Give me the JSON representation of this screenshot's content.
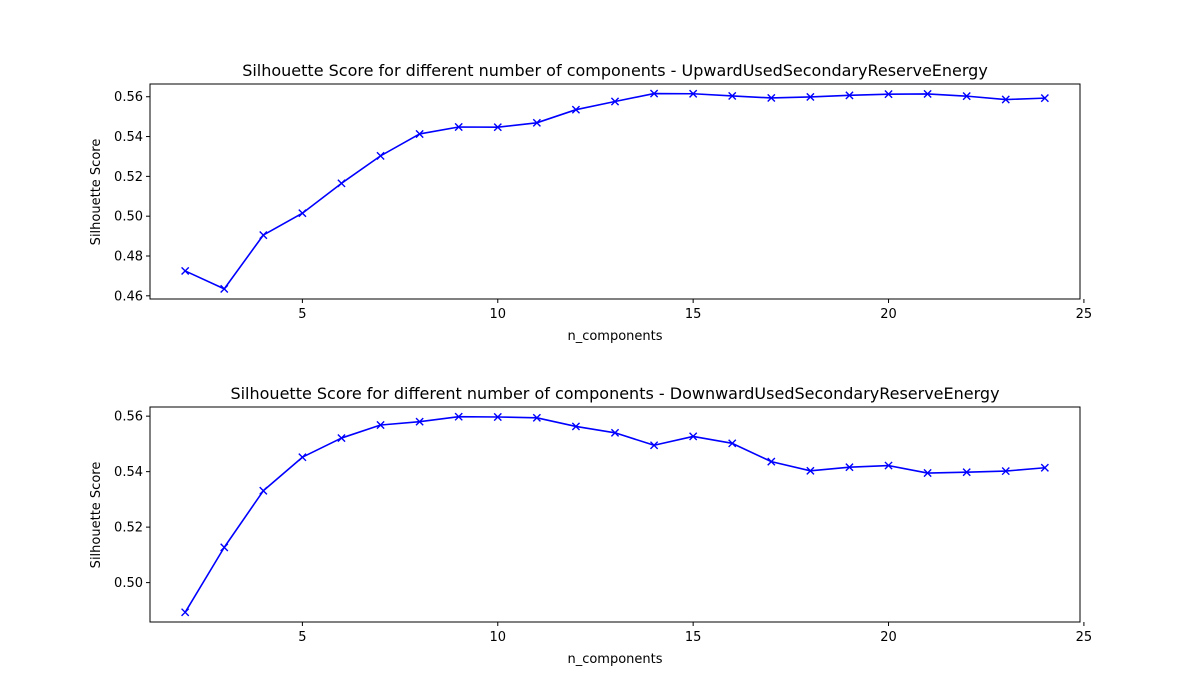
{
  "chart_data": [
    {
      "type": "line",
      "title": "Silhouette Score for different number of components - UpwardUsedSecondaryReserveEnergy",
      "xlabel": "n_components",
      "ylabel": "Silhouette Score",
      "xlim": [
        1.1,
        24.9
      ],
      "ylim": [
        0.4584,
        0.5664
      ],
      "xticks": [
        5,
        10,
        15,
        20,
        25
      ],
      "xtick_labels": [
        "5",
        "10",
        "15",
        "20",
        "25"
      ],
      "yticks": [
        0.46,
        0.48,
        0.5,
        0.52,
        0.54,
        0.56
      ],
      "ytick_labels": [
        "0.46",
        "0.48",
        "0.50",
        "0.52",
        "0.54",
        "0.56"
      ],
      "grid": false,
      "series": [
        {
          "color": "#0000ff",
          "marker": "x",
          "x": [
            2,
            3,
            4,
            5,
            6,
            7,
            8,
            9,
            10,
            11,
            12,
            13,
            14,
            15,
            16,
            17,
            18,
            19,
            20,
            21,
            22,
            23,
            24
          ],
          "y": [
            0.4725,
            0.4635,
            0.4905,
            0.5015,
            0.5165,
            0.5303,
            0.5413,
            0.5448,
            0.5447,
            0.5469,
            0.5535,
            0.5576,
            0.5616,
            0.5615,
            0.5604,
            0.5594,
            0.5599,
            0.5607,
            0.5613,
            0.5614,
            0.5603,
            0.5586,
            0.5593
          ]
        }
      ]
    },
    {
      "type": "line",
      "title": "Silhouette Score for different number of components - DownwardUsedSecondaryReserveEnergy",
      "xlabel": "n_components",
      "ylabel": "Silhouette Score",
      "xlim": [
        1.1,
        24.9
      ],
      "ylim": [
        0.4858,
        0.5633
      ],
      "xticks": [
        5,
        10,
        15,
        20,
        25
      ],
      "xtick_labels": [
        "5",
        "10",
        "15",
        "20",
        "25"
      ],
      "yticks": [
        0.5,
        0.52,
        0.54,
        0.56
      ],
      "ytick_labels": [
        "0.50",
        "0.52",
        "0.54",
        "0.56"
      ],
      "grid": false,
      "series": [
        {
          "color": "#0000ff",
          "marker": "x",
          "x": [
            2,
            3,
            4,
            5,
            6,
            7,
            8,
            9,
            10,
            11,
            12,
            13,
            14,
            15,
            16,
            17,
            18,
            19,
            20,
            21,
            22,
            23,
            24
          ],
          "y": [
            0.4893,
            0.5127,
            0.5331,
            0.5452,
            0.5521,
            0.5568,
            0.558,
            0.5598,
            0.5597,
            0.5594,
            0.5563,
            0.554,
            0.5495,
            0.5527,
            0.5502,
            0.5436,
            0.5403,
            0.5416,
            0.5422,
            0.5395,
            0.5398,
            0.5402,
            0.5414
          ]
        }
      ]
    }
  ]
}
